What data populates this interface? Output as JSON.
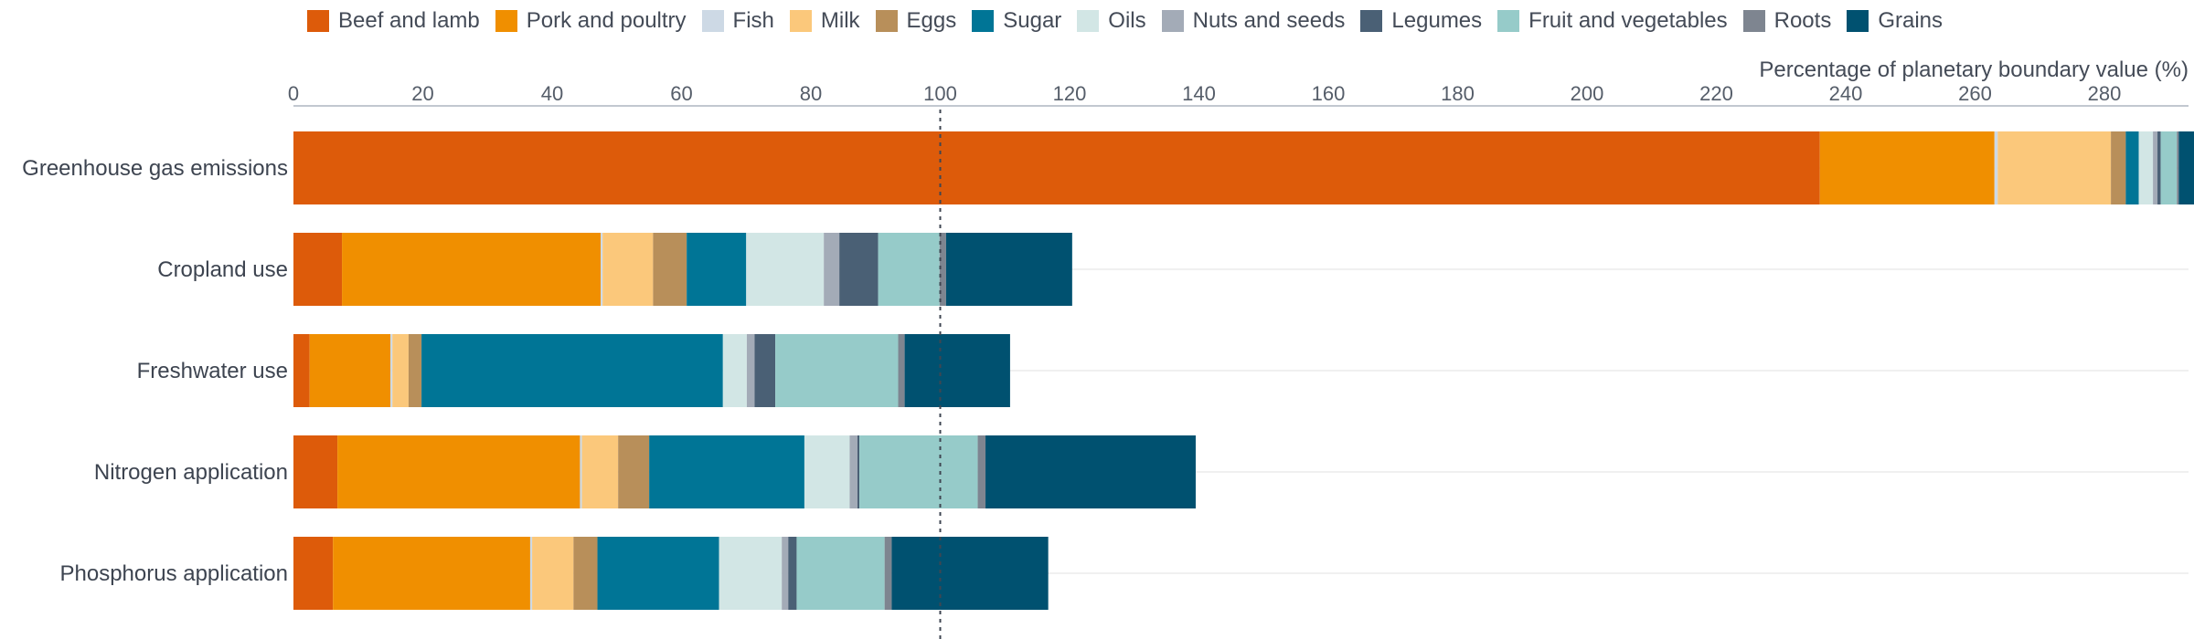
{
  "chart_data": {
    "type": "bar",
    "orientation": "horizontal",
    "stacked": true,
    "xlabel": "Percentage of planetary boundary value (%)",
    "xlim": [
      0,
      293
    ],
    "xticks": [
      0,
      20,
      40,
      60,
      80,
      100,
      120,
      140,
      160,
      180,
      200,
      220,
      240,
      260,
      280
    ],
    "x_axis_position": "top",
    "reference_line": 100,
    "grid": false,
    "legend_position": "top",
    "categories": [
      "Greenhouse gas emissions",
      "Cropland use",
      "Freshwater use",
      "Nitrogen application",
      "Phosphorus application"
    ],
    "series": [
      {
        "name": "Beef and lamb",
        "color": "#dd5b0a",
        "values": [
          236,
          7.5,
          2.5,
          6.8,
          6.1
        ]
      },
      {
        "name": "Pork and poultry",
        "color": "#f08f00",
        "values": [
          27,
          40,
          12.5,
          37.5,
          30.5
        ]
      },
      {
        "name": "Fish",
        "color": "#cdd9e5",
        "values": [
          0.5,
          0.3,
          0.3,
          0.3,
          0.3
        ]
      },
      {
        "name": "Milk",
        "color": "#fbc87b",
        "values": [
          17.5,
          7.8,
          2.5,
          5.6,
          6.4
        ]
      },
      {
        "name": "Eggs",
        "color": "#b88f5a",
        "values": [
          2.3,
          5.2,
          2,
          4.8,
          3.7
        ]
      },
      {
        "name": "Sugar",
        "color": "#007596",
        "values": [
          2,
          9.2,
          46.6,
          24,
          18.8
        ]
      },
      {
        "name": "Oils",
        "color": "#d2e6e5",
        "values": [
          2.2,
          12,
          3.7,
          7,
          9.7
        ]
      },
      {
        "name": "Nuts and seeds",
        "color": "#a3abb7",
        "values": [
          0.7,
          2.4,
          1.2,
          1.2,
          1
        ]
      },
      {
        "name": "Legumes",
        "color": "#4a6075",
        "values": [
          0.5,
          6,
          3.2,
          0.3,
          1.3
        ]
      },
      {
        "name": "Fruit and vegetables",
        "color": "#96cbc9",
        "values": [
          2.5,
          9.5,
          19,
          18.3,
          13.6
        ]
      },
      {
        "name": "Roots",
        "color": "#7e8590",
        "values": [
          0.3,
          1,
          1,
          1.2,
          1.1
        ]
      },
      {
        "name": "Grains",
        "color": "#005170",
        "values": [
          2.7,
          19.5,
          16.3,
          32.5,
          24.2
        ]
      }
    ]
  }
}
